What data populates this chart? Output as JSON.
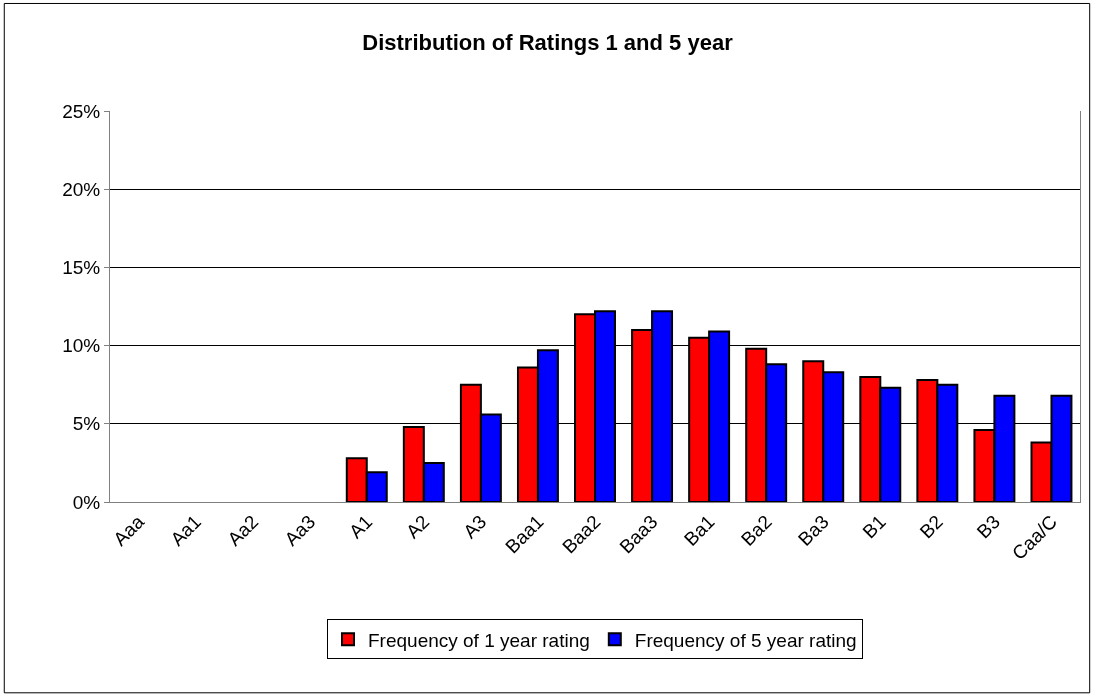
{
  "chart_data": {
    "type": "bar",
    "title": "Distribution of Ratings 1 and 5 year",
    "categories": [
      "Aaa",
      "Aa1",
      "Aa2",
      "Aa3",
      "A1",
      "A2",
      "A3",
      "Baa1",
      "Baa2",
      "Baa3",
      "Ba1",
      "Ba2",
      "Ba3",
      "B1",
      "B2",
      "B3",
      "Caa/C"
    ],
    "series": [
      {
        "name": "Frequency of 1 year rating",
        "color": "#ff0000",
        "values": [
          null,
          null,
          null,
          null,
          2.8,
          4.8,
          7.5,
          8.6,
          12.0,
          11.0,
          10.5,
          9.8,
          9.0,
          8.0,
          7.8,
          4.6,
          3.8
        ]
      },
      {
        "name": "Frequency of 5 year rating",
        "color": "#0000ff",
        "values": [
          null,
          null,
          null,
          null,
          1.9,
          2.5,
          5.6,
          9.7,
          12.2,
          12.2,
          10.9,
          8.8,
          8.3,
          7.3,
          7.5,
          6.8,
          6.8
        ]
      }
    ],
    "ylim": [
      0,
      25
    ],
    "yticks": [
      {
        "value": 0,
        "label": "0%"
      },
      {
        "value": 5,
        "label": "5%"
      },
      {
        "value": 10,
        "label": "10%"
      },
      {
        "value": 15,
        "label": "15%"
      },
      {
        "value": 20,
        "label": "20%"
      },
      {
        "value": 25,
        "label": "25%"
      }
    ],
    "grid": "y",
    "legend": "bottom"
  }
}
